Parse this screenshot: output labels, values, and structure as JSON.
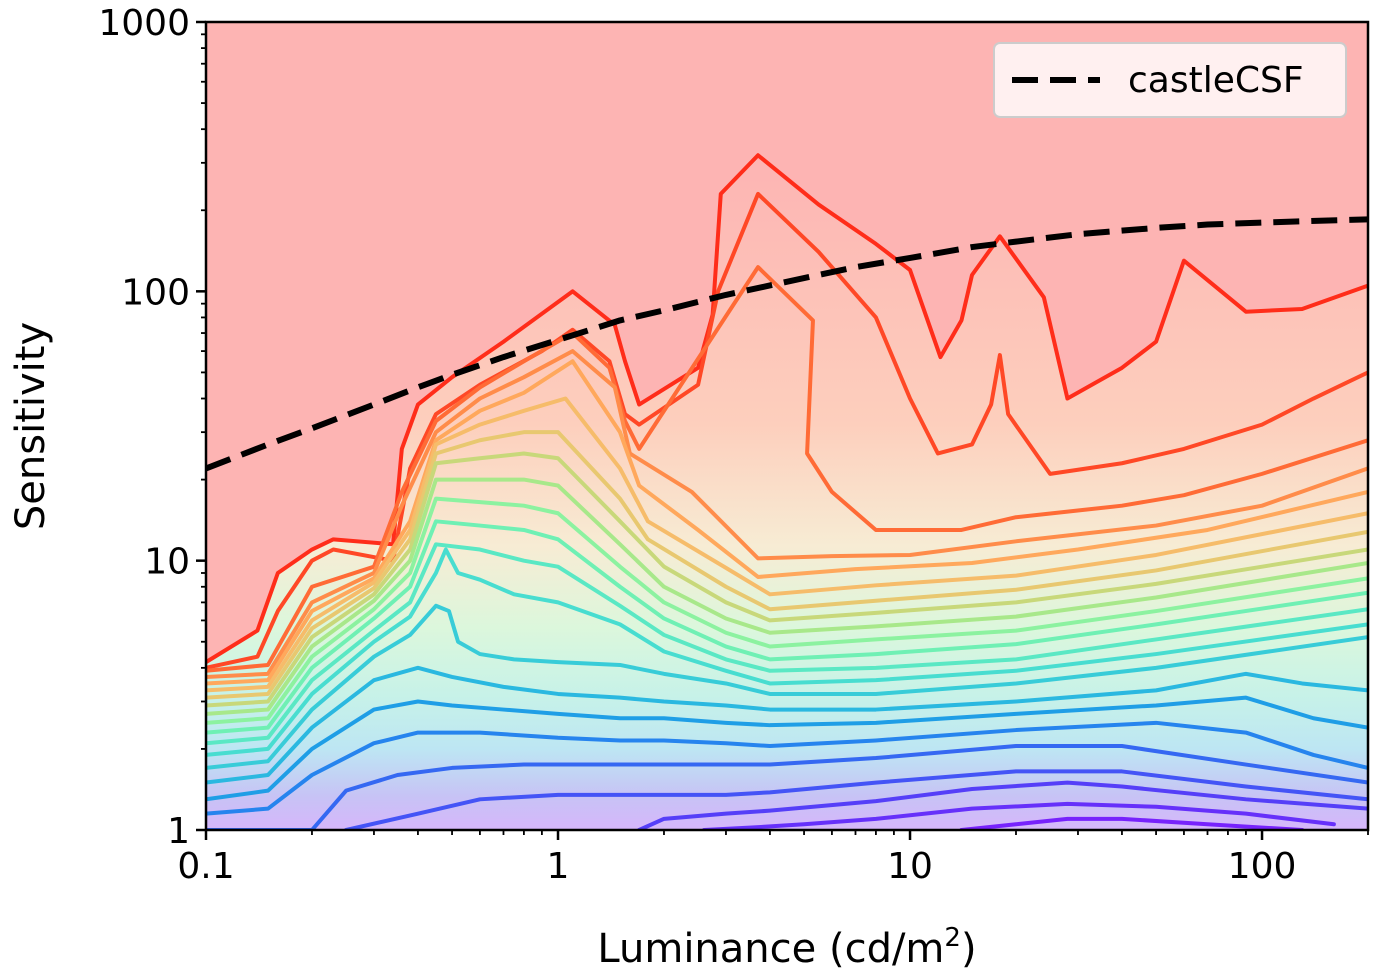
{
  "chart_data": {
    "type": "line",
    "xlabel": "Luminance (cd/m",
    "xlabel_sup": "2",
    "xlabel_end": ")",
    "ylabel": "Sensitivity",
    "xscale": "log",
    "yscale": "log",
    "xlim": [
      0.1,
      200
    ],
    "ylim": [
      1,
      1000
    ],
    "x_ticks": [
      0.1,
      1,
      10,
      100
    ],
    "x_tick_labels": [
      "0.1",
      "1",
      "10",
      "100"
    ],
    "y_ticks": [
      1,
      10,
      100,
      1000
    ],
    "y_tick_labels": [
      "1",
      "10",
      "100",
      "1000"
    ],
    "background_color": "#fdb4b3",
    "legend": {
      "position": "top-right",
      "label": "castleCSF"
    },
    "series": [
      {
        "name": "castleCSF",
        "style": "dashed",
        "color": "#000000",
        "x": [
          0.1,
          0.15,
          0.2,
          0.3,
          0.4,
          0.5,
          0.7,
          1,
          1.5,
          2,
          3,
          5,
          7,
          10,
          15,
          20,
          30,
          50,
          70,
          100,
          150,
          200
        ],
        "y": [
          22,
          27,
          31,
          38,
          44,
          49,
          57,
          66,
          78,
          85,
          97,
          112,
          123,
          133,
          146,
          153,
          163,
          172,
          177,
          180,
          183,
          185
        ]
      }
    ],
    "contours": [
      {
        "color": "#ff2d1a",
        "x": [
          0.1,
          0.14,
          0.16,
          0.2,
          0.23,
          0.34,
          0.36,
          0.4,
          0.5,
          0.7,
          1.1,
          1.45,
          1.55,
          1.7,
          2.5,
          2.75,
          2.9,
          3.7,
          5.5,
          8,
          10,
          12.2,
          14,
          15,
          18,
          24,
          28,
          40,
          50,
          60,
          90,
          130,
          200
        ],
        "y": [
          4.2,
          5.5,
          9,
          11,
          12,
          11.5,
          26,
          38,
          48,
          65,
          100,
          75,
          55,
          38,
          52,
          82,
          230,
          320,
          210,
          150,
          120,
          57,
          78,
          115,
          160,
          95,
          40,
          52,
          65,
          130,
          84,
          86,
          105
        ]
      },
      {
        "color": "#ff4826",
        "x": [
          0.1,
          0.14,
          0.16,
          0.2,
          0.23,
          0.34,
          0.38,
          0.45,
          0.6,
          0.9,
          1.1,
          1.4,
          1.55,
          1.7,
          2.5,
          2.85,
          3.7,
          5.5,
          8,
          10,
          12,
          15,
          17,
          18,
          19,
          25,
          40,
          60,
          100,
          140,
          200
        ],
        "y": [
          4.0,
          4.4,
          6.5,
          10,
          11,
          10,
          22,
          35,
          45,
          60,
          72,
          55,
          35,
          32,
          45,
          100,
          230,
          140,
          80,
          40,
          25,
          27,
          38,
          58,
          35,
          21,
          23,
          26,
          32,
          40,
          50
        ]
      },
      {
        "color": "#ff6b36",
        "x": [
          0.1,
          0.15,
          0.2,
          0.3,
          0.36,
          0.45,
          0.6,
          0.8,
          1.1,
          1.4,
          1.55,
          1.7,
          3.7,
          5.3,
          5.1,
          6,
          8,
          10,
          14,
          20,
          40,
          60,
          100,
          200
        ],
        "y": [
          3.9,
          4.1,
          8,
          9.5,
          18,
          33,
          44,
          55,
          70,
          52,
          33,
          26,
          123,
          78,
          25,
          18,
          13,
          13,
          13,
          14.5,
          16,
          17.5,
          21,
          28
        ]
      },
      {
        "color": "#ff8c4a",
        "x": [
          0.1,
          0.15,
          0.2,
          0.3,
          0.36,
          0.45,
          0.6,
          0.8,
          1.1,
          1.45,
          1.6,
          2.4,
          3.7,
          6,
          10,
          20,
          50,
          100,
          200
        ],
        "y": [
          3.7,
          3.8,
          7,
          9,
          16,
          30,
          40,
          48,
          60,
          44,
          25,
          18,
          10.2,
          10.4,
          10.5,
          11.8,
          13.5,
          16,
          22
        ]
      },
      {
        "color": "#ffa85c",
        "x": [
          0.1,
          0.15,
          0.2,
          0.3,
          0.38,
          0.45,
          0.6,
          0.8,
          1.1,
          1.5,
          1.7,
          2.5,
          3.7,
          7,
          15,
          30,
          70,
          200
        ],
        "y": [
          3.5,
          3.6,
          6.5,
          8.6,
          14,
          28,
          36,
          42,
          55,
          30,
          19,
          13,
          8.7,
          9.3,
          9.8,
          11,
          13,
          18
        ]
      },
      {
        "color": "#f6bc6a",
        "x": [
          0.1,
          0.15,
          0.2,
          0.3,
          0.38,
          0.45,
          0.6,
          0.8,
          1.05,
          1.5,
          1.8,
          3,
          4,
          8,
          20,
          50,
          200
        ],
        "y": [
          3.3,
          3.4,
          6,
          8.3,
          13,
          27,
          32,
          36,
          40,
          22,
          14,
          9.4,
          7.5,
          8.1,
          8.8,
          10.5,
          15
        ]
      },
      {
        "color": "#e8c870",
        "x": [
          0.1,
          0.15,
          0.2,
          0.3,
          0.38,
          0.45,
          0.6,
          0.8,
          1.0,
          1.5,
          1.8,
          3,
          4,
          8,
          20,
          50,
          200
        ],
        "y": [
          3.1,
          3.2,
          5.6,
          7.9,
          12,
          25,
          28,
          30,
          30,
          17,
          12,
          8.0,
          6.6,
          7.1,
          7.8,
          9.2,
          12.8
        ]
      },
      {
        "color": "#c8d87a",
        "x": [
          0.1,
          0.15,
          0.2,
          0.3,
          0.38,
          0.45,
          0.6,
          0.8,
          1.0,
          1.5,
          2,
          3,
          4,
          8,
          20,
          50,
          200
        ],
        "y": [
          2.9,
          3.0,
          5.2,
          7.5,
          11,
          23,
          24,
          25,
          24,
          14,
          9.5,
          7.0,
          6.0,
          6.4,
          7.0,
          8.2,
          11
        ]
      },
      {
        "color": "#a8e88a",
        "x": [
          0.1,
          0.15,
          0.2,
          0.3,
          0.38,
          0.45,
          0.6,
          0.8,
          1.0,
          1.5,
          2,
          3,
          4,
          8,
          20,
          50,
          200
        ],
        "y": [
          2.7,
          2.8,
          4.8,
          7.1,
          10,
          20,
          20,
          20,
          19,
          11.5,
          8,
          6.1,
          5.4,
          5.7,
          6.2,
          7.3,
          9.8
        ]
      },
      {
        "color": "#8cf2a0",
        "x": [
          0.1,
          0.15,
          0.2,
          0.3,
          0.38,
          0.45,
          0.6,
          0.8,
          1.0,
          1.5,
          2,
          3,
          4,
          8,
          20,
          50,
          200
        ],
        "y": [
          2.5,
          2.6,
          4.4,
          6.6,
          9,
          17,
          16.5,
          16,
          15,
          9.5,
          7,
          5.4,
          4.8,
          5.1,
          5.5,
          6.5,
          8.6
        ]
      },
      {
        "color": "#6ff0b4",
        "x": [
          0.1,
          0.15,
          0.2,
          0.3,
          0.38,
          0.45,
          0.6,
          0.8,
          1.0,
          1.5,
          2,
          3,
          4,
          8,
          20,
          50,
          200
        ],
        "y": [
          2.3,
          2.4,
          4.0,
          6.1,
          8,
          14,
          13.5,
          13,
          12,
          8,
          6.1,
          4.8,
          4.3,
          4.5,
          4.9,
          5.8,
          7.6
        ]
      },
      {
        "color": "#5ae8c4",
        "x": [
          0.1,
          0.15,
          0.2,
          0.3,
          0.38,
          0.45,
          0.6,
          0.8,
          1.0,
          1.5,
          2,
          3,
          4,
          8,
          20,
          50,
          200
        ],
        "y": [
          2.1,
          2.2,
          3.6,
          5.5,
          7,
          11.5,
          11,
          10,
          9.5,
          6.8,
          5.3,
          4.3,
          3.9,
          4.0,
          4.3,
          5.1,
          6.6
        ]
      },
      {
        "color": "#48ddd0",
        "x": [
          0.1,
          0.15,
          0.2,
          0.3,
          0.38,
          0.45,
          0.48,
          0.52,
          0.6,
          0.75,
          1.0,
          1.5,
          2,
          3,
          4,
          8,
          20,
          50,
          200
        ],
        "y": [
          1.9,
          2.0,
          3.2,
          5.0,
          6.2,
          9,
          11,
          9,
          8.5,
          7.5,
          7.0,
          5.8,
          4.6,
          3.9,
          3.5,
          3.6,
          3.9,
          4.5,
          5.8
        ]
      },
      {
        "color": "#38ccd8",
        "x": [
          0.1,
          0.15,
          0.2,
          0.3,
          0.38,
          0.45,
          0.49,
          0.52,
          0.6,
          0.75,
          1.0,
          1.5,
          2,
          3,
          4,
          8,
          20,
          50,
          200
        ],
        "y": [
          1.7,
          1.8,
          2.8,
          4.4,
          5.3,
          6.8,
          6.5,
          5.0,
          4.5,
          4.3,
          4.2,
          4.1,
          3.8,
          3.5,
          3.2,
          3.2,
          3.5,
          4.0,
          5.2
        ]
      },
      {
        "color": "#2ab8e0",
        "x": [
          0.1,
          0.15,
          0.2,
          0.3,
          0.4,
          0.5,
          0.7,
          1.0,
          1.5,
          2,
          3,
          4,
          8,
          20,
          50,
          90,
          130,
          200
        ],
        "y": [
          1.5,
          1.6,
          2.4,
          3.6,
          4.0,
          3.7,
          3.4,
          3.2,
          3.1,
          3.0,
          2.9,
          2.8,
          2.8,
          3.0,
          3.3,
          3.8,
          3.5,
          3.3
        ]
      },
      {
        "color": "#1f9ee6",
        "x": [
          0.1,
          0.15,
          0.2,
          0.3,
          0.4,
          0.5,
          0.7,
          1.0,
          1.5,
          2,
          3,
          4,
          8,
          20,
          50,
          90,
          140,
          200
        ],
        "y": [
          1.3,
          1.4,
          2.0,
          2.8,
          3.0,
          2.9,
          2.8,
          2.7,
          2.6,
          2.6,
          2.5,
          2.45,
          2.5,
          2.7,
          2.9,
          3.1,
          2.6,
          2.4
        ]
      },
      {
        "color": "#2684ee",
        "x": [
          0.1,
          0.15,
          0.2,
          0.3,
          0.4,
          0.6,
          1.0,
          1.5,
          2,
          3,
          4,
          8,
          20,
          50,
          90,
          140,
          200
        ],
        "y": [
          1.15,
          1.2,
          1.6,
          2.1,
          2.3,
          2.3,
          2.2,
          2.15,
          2.15,
          2.1,
          2.05,
          2.15,
          2.35,
          2.5,
          2.3,
          1.9,
          1.7
        ]
      },
      {
        "color": "#3568f2",
        "x": [
          0.1,
          0.2,
          0.25,
          0.35,
          0.5,
          0.8,
          1.0,
          1.5,
          2,
          3,
          4,
          8,
          20,
          40,
          90,
          200
        ],
        "y": [
          1.0,
          1.0,
          1.4,
          1.6,
          1.7,
          1.75,
          1.75,
          1.75,
          1.75,
          1.75,
          1.75,
          1.85,
          2.05,
          2.05,
          1.75,
          1.5
        ]
      },
      {
        "color": "#4454f6",
        "x": [
          0.25,
          0.4,
          0.6,
          1.0,
          1.5,
          2,
          3,
          4,
          8,
          20,
          40,
          90,
          200
        ],
        "y": [
          1.0,
          1.15,
          1.3,
          1.35,
          1.35,
          1.35,
          1.35,
          1.38,
          1.5,
          1.65,
          1.65,
          1.45,
          1.3
        ]
      },
      {
        "color": "#553ff8",
        "x": [
          1.7,
          2,
          3,
          4,
          8,
          15,
          28,
          40,
          90,
          200
        ],
        "y": [
          1.0,
          1.1,
          1.15,
          1.18,
          1.28,
          1.42,
          1.5,
          1.45,
          1.3,
          1.2
        ]
      },
      {
        "color": "#6630fa",
        "x": [
          2.6,
          3.5,
          5,
          8,
          15,
          28,
          50,
          90,
          160
        ],
        "y": [
          1.0,
          1.02,
          1.05,
          1.1,
          1.2,
          1.25,
          1.22,
          1.15,
          1.05
        ]
      },
      {
        "color": "#7722fc",
        "x": [
          14,
          20,
          28,
          40,
          70,
          130
        ],
        "y": [
          1.0,
          1.05,
          1.1,
          1.1,
          1.05,
          1.0
        ]
      }
    ]
  }
}
